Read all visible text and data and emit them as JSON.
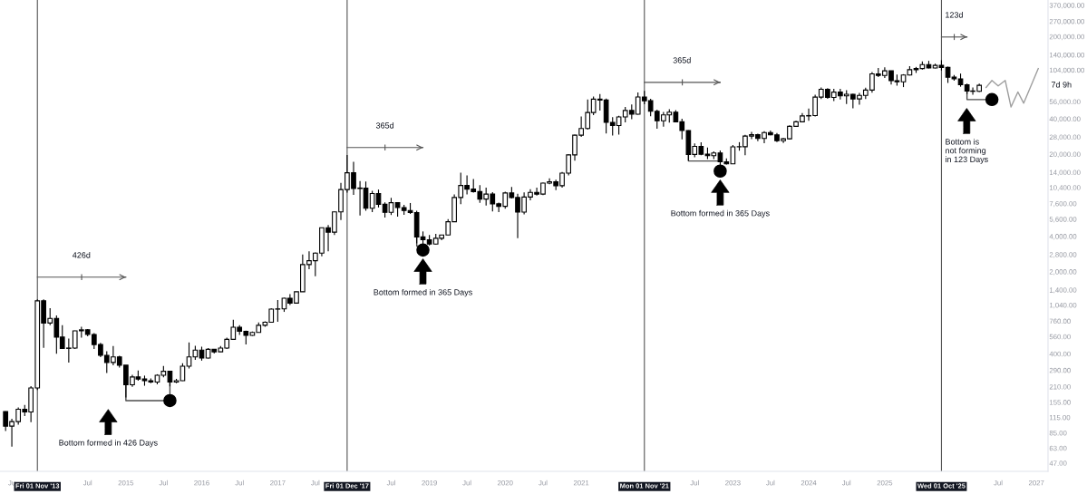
{
  "chart_data": {
    "type": "candlestick",
    "color": "#000000",
    "log": true,
    "grid": false,
    "x": [
      "2013-06",
      "2013-07",
      "2013-08",
      "2013-09",
      "2013-10",
      "2013-11",
      "2013-12",
      "2014-01",
      "2014-02",
      "2014-03",
      "2014-04",
      "2014-05",
      "2014-06",
      "2014-07",
      "2014-08",
      "2014-09",
      "2014-10",
      "2014-11",
      "2014-12",
      "2015-01",
      "2015-02",
      "2015-03",
      "2015-04",
      "2015-05",
      "2015-06",
      "2015-07",
      "2015-08",
      "2015-09",
      "2015-10",
      "2015-11",
      "2015-12",
      "2016-01",
      "2016-02",
      "2016-03",
      "2016-04",
      "2016-05",
      "2016-06",
      "2016-07",
      "2016-08",
      "2016-09",
      "2016-10",
      "2016-11",
      "2016-12",
      "2017-01",
      "2017-02",
      "2017-03",
      "2017-04",
      "2017-05",
      "2017-06",
      "2017-07",
      "2017-08",
      "2017-09",
      "2017-10",
      "2017-11",
      "2017-12",
      "2018-01",
      "2018-02",
      "2018-03",
      "2018-04",
      "2018-05",
      "2018-06",
      "2018-07",
      "2018-08",
      "2018-09",
      "2018-10",
      "2018-11",
      "2018-12",
      "2019-01",
      "2019-02",
      "2019-03",
      "2019-04",
      "2019-05",
      "2019-06",
      "2019-07",
      "2019-08",
      "2019-09",
      "2019-10",
      "2019-11",
      "2019-12",
      "2020-01",
      "2020-02",
      "2020-03",
      "2020-04",
      "2020-05",
      "2020-06",
      "2020-07",
      "2020-08",
      "2020-09",
      "2020-10",
      "2020-11",
      "2020-12",
      "2021-01",
      "2021-02",
      "2021-03",
      "2021-04",
      "2021-05",
      "2021-06",
      "2021-07",
      "2021-08",
      "2021-09",
      "2021-10",
      "2021-11",
      "2021-12",
      "2022-01",
      "2022-02",
      "2022-03",
      "2022-04",
      "2022-05",
      "2022-06",
      "2022-07",
      "2022-08",
      "2022-09",
      "2022-10",
      "2022-11",
      "2022-12",
      "2023-01",
      "2023-02",
      "2023-03",
      "2023-04",
      "2023-05",
      "2023-06",
      "2023-07",
      "2023-08",
      "2023-09",
      "2023-10",
      "2023-11",
      "2023-12",
      "2024-01",
      "2024-02",
      "2024-03",
      "2024-04",
      "2024-05",
      "2024-06",
      "2024-07",
      "2024-08",
      "2024-09",
      "2024-10",
      "2024-11",
      "2024-12",
      "2025-01",
      "2025-02",
      "2025-03",
      "2025-04",
      "2025-05",
      "2025-06",
      "2025-07",
      "2025-08",
      "2025-09",
      "2025-10",
      "2025-11",
      "2025-12",
      "2026-01",
      "2026-02",
      "2026-03",
      "2026-04"
    ],
    "ohlc": [
      [
        129,
        130,
        88,
        97
      ],
      [
        97,
        112,
        65,
        106
      ],
      [
        106,
        140,
        100,
        135
      ],
      [
        135,
        147,
        118,
        128
      ],
      [
        128,
        212,
        105,
        205
      ],
      [
        205,
        1163,
        197,
        1130
      ],
      [
        1130,
        1163,
        449,
        732
      ],
      [
        732,
        980,
        700,
        800
      ],
      [
        800,
        850,
        400,
        555
      ],
      [
        555,
        700,
        440,
        445
      ],
      [
        445,
        540,
        337,
        448
      ],
      [
        448,
        630,
        440,
        628
      ],
      [
        628,
        680,
        550,
        640
      ],
      [
        640,
        650,
        565,
        585
      ],
      [
        585,
        600,
        440,
        480
      ],
      [
        480,
        495,
        375,
        388
      ],
      [
        388,
        420,
        275,
        338
      ],
      [
        338,
        466,
        320,
        377
      ],
      [
        377,
        385,
        305,
        320
      ],
      [
        320,
        320,
        170,
        218
      ],
      [
        218,
        265,
        210,
        254
      ],
      [
        254,
        289,
        236,
        244
      ],
      [
        244,
        261,
        214,
        236
      ],
      [
        236,
        247,
        225,
        230
      ],
      [
        230,
        268,
        220,
        263
      ],
      [
        263,
        315,
        253,
        284
      ],
      [
        284,
        285,
        211,
        230
      ],
      [
        230,
        245,
        225,
        236
      ],
      [
        236,
        333,
        235,
        314
      ],
      [
        314,
        500,
        300,
        377
      ],
      [
        377,
        468,
        355,
        430
      ],
      [
        430,
        460,
        350,
        368
      ],
      [
        368,
        448,
        365,
        437
      ],
      [
        437,
        440,
        403,
        416
      ],
      [
        416,
        467,
        415,
        448
      ],
      [
        448,
        550,
        440,
        531
      ],
      [
        531,
        780,
        525,
        673
      ],
      [
        673,
        700,
        580,
        622
      ],
      [
        622,
        630,
        480,
        574
      ],
      [
        574,
        620,
        570,
        608
      ],
      [
        608,
        740,
        605,
        700
      ],
      [
        700,
        755,
        680,
        742
      ],
      [
        742,
        975,
        740,
        960
      ],
      [
        960,
        1150,
        750,
        965
      ],
      [
        965,
        1200,
        910,
        1190
      ],
      [
        1190,
        1290,
        1040,
        1080
      ],
      [
        1080,
        1350,
        1070,
        1350
      ],
      [
        1350,
        2800,
        1350,
        2300
      ],
      [
        2300,
        2980,
        2100,
        2480
      ],
      [
        2480,
        2920,
        1830,
        2875
      ],
      [
        2875,
        4750,
        2700,
        4735
      ],
      [
        4735,
        4980,
        2980,
        4340
      ],
      [
        4340,
        6470,
        4110,
        6450
      ],
      [
        6450,
        11400,
        5500,
        10000
      ],
      [
        10000,
        19700,
        9400,
        13880
      ],
      [
        13880,
        17200,
        9000,
        10200
      ],
      [
        10200,
        11800,
        6000,
        10300
      ],
      [
        10300,
        11700,
        6600,
        6930
      ],
      [
        6930,
        9770,
        6430,
        9240
      ],
      [
        9240,
        9990,
        7040,
        7490
      ],
      [
        7490,
        7780,
        5780,
        6390
      ],
      [
        6390,
        8500,
        6070,
        7730
      ],
      [
        7730,
        7760,
        5880,
        7030
      ],
      [
        7030,
        7400,
        6100,
        6630
      ],
      [
        6630,
        7680,
        6200,
        6370
      ],
      [
        6370,
        6590,
        3480,
        3950
      ],
      [
        3950,
        4400,
        3150,
        3740
      ],
      [
        3740,
        4100,
        3350,
        3440
      ],
      [
        3440,
        4200,
        3400,
        3850
      ],
      [
        3850,
        4100,
        3700,
        4100
      ],
      [
        4100,
        5600,
        4080,
        5320
      ],
      [
        5320,
        9100,
        5300,
        8560
      ],
      [
        8560,
        13900,
        7500,
        10820
      ],
      [
        10820,
        13200,
        9100,
        10080
      ],
      [
        10080,
        12300,
        9400,
        9600
      ],
      [
        9600,
        10900,
        7700,
        8300
      ],
      [
        8300,
        10400,
        7300,
        9150
      ],
      [
        9150,
        9500,
        6500,
        7550
      ],
      [
        7550,
        7750,
        6430,
        7190
      ],
      [
        7190,
        9580,
        6860,
        9350
      ],
      [
        9350,
        10500,
        8400,
        8550
      ],
      [
        8550,
        9200,
        3850,
        6420
      ],
      [
        6420,
        9460,
        6150,
        8630
      ],
      [
        8630,
        10080,
        8100,
        9450
      ],
      [
        9450,
        10400,
        8900,
        9140
      ],
      [
        9140,
        11450,
        8950,
        11350
      ],
      [
        11350,
        12470,
        11100,
        11650
      ],
      [
        11650,
        12100,
        9880,
        10780
      ],
      [
        10780,
        14100,
        10400,
        13800
      ],
      [
        13800,
        19900,
        13200,
        19700
      ],
      [
        19700,
        29300,
        17600,
        29000
      ],
      [
        29000,
        41900,
        28100,
        33100
      ],
      [
        33100,
        58300,
        32300,
        45200
      ],
      [
        45200,
        61800,
        43000,
        58800
      ],
      [
        58800,
        64900,
        47000,
        57700
      ],
      [
        57700,
        59500,
        30000,
        37300
      ],
      [
        37300,
        41300,
        28800,
        35000
      ],
      [
        35000,
        42400,
        29300,
        41500
      ],
      [
        41500,
        50500,
        37300,
        47100
      ],
      [
        47100,
        52900,
        39600,
        43800
      ],
      [
        43800,
        67000,
        43300,
        61300
      ],
      [
        61300,
        69000,
        53300,
        57000
      ],
      [
        57000,
        59100,
        42000,
        46300
      ],
      [
        46300,
        47900,
        32900,
        38500
      ],
      [
        38500,
        45800,
        34300,
        43200
      ],
      [
        43200,
        48200,
        37200,
        45500
      ],
      [
        45500,
        47400,
        37600,
        37700
      ],
      [
        37700,
        40000,
        26700,
        31800
      ],
      [
        31800,
        31900,
        17600,
        19900
      ],
      [
        19900,
        24700,
        18800,
        23300
      ],
      [
        23300,
        25200,
        19600,
        20000
      ],
      [
        20000,
        22800,
        18200,
        19400
      ],
      [
        19400,
        21100,
        18200,
        20500
      ],
      [
        20500,
        21500,
        15500,
        17200
      ],
      [
        17200,
        18400,
        16300,
        16550
      ],
      [
        16550,
        23900,
        16500,
        23100
      ],
      [
        23100,
        25300,
        21400,
        23150
      ],
      [
        23150,
        29200,
        19600,
        28500
      ],
      [
        28500,
        31000,
        26900,
        29300
      ],
      [
        29300,
        29800,
        25800,
        27200
      ],
      [
        27200,
        31400,
        24800,
        30500
      ],
      [
        30500,
        31800,
        28900,
        29200
      ],
      [
        29200,
        30200,
        25300,
        26000
      ],
      [
        26000,
        27500,
        24900,
        27000
      ],
      [
        27000,
        35200,
        26600,
        34500
      ],
      [
        34500,
        38400,
        34100,
        37700
      ],
      [
        37700,
        44700,
        37600,
        42300
      ],
      [
        42300,
        48900,
        38500,
        42600
      ],
      [
        42600,
        64000,
        41900,
        61200
      ],
      [
        61200,
        73800,
        59000,
        71300
      ],
      [
        71300,
        72800,
        59200,
        60700
      ],
      [
        60700,
        72000,
        56500,
        67500
      ],
      [
        67500,
        72000,
        58400,
        62700
      ],
      [
        62700,
        70000,
        53500,
        64600
      ],
      [
        64600,
        65100,
        49000,
        59000
      ],
      [
        59000,
        66500,
        52600,
        63300
      ],
      [
        63300,
        73600,
        58900,
        70200
      ],
      [
        70200,
        99800,
        66800,
        96400
      ],
      [
        96400,
        108300,
        90500,
        93400
      ],
      [
        93400,
        109600,
        89200,
        102400
      ],
      [
        102400,
        102800,
        78300,
        84300
      ],
      [
        84300,
        95000,
        76600,
        82500
      ],
      [
        82500,
        95800,
        74400,
        94200
      ],
      [
        94200,
        111900,
        93400,
        104600
      ],
      [
        104600,
        110500,
        98200,
        107100
      ],
      [
        107100,
        123000,
        105100,
        115700
      ],
      [
        115700,
        124400,
        107300,
        108200
      ],
      [
        108200,
        117900,
        107300,
        114000
      ],
      [
        114000,
        126000,
        103000,
        109500
      ],
      [
        109500,
        111000,
        80600,
        90400
      ],
      [
        90400,
        94500,
        84500,
        87500
      ],
      [
        87500,
        97000,
        75000,
        78000
      ],
      [
        78000,
        79500,
        65000,
        69000
      ],
      [
        69000,
        74000,
        64000,
        68500
      ],
      [
        68500,
        79500,
        67500,
        77000
      ]
    ],
    "series": [
      {
        "type": "line",
        "color": "#9e9e9e",
        "x": [
          "2026-05-04",
          "2026-06",
          "2026-07",
          "2026-08-04",
          "2026-09",
          "2026-10-04",
          "2026-11",
          "2027-01-10"
        ],
        "values": [
          73900,
          84800,
          76100,
          84800,
          50400,
          67600,
          54300,
          106800
        ]
      },
      {
        "type": "line",
        "color": "#4d4d4d",
        "x": [
          "2015-01",
          "2015-01",
          "2015-08",
          "2015-08",
          null,
          "2018-11",
          "2018-11",
          "2018-12",
          null,
          "2022-06",
          "2022-06",
          "2022-11",
          null,
          "2026-02",
          "2026-02",
          "2026-06"
        ],
        "values": [
          218,
          160,
          160,
          230,
          null,
          3950,
          3300,
          3300,
          null,
          19900,
          17500,
          17500,
          null,
          69000,
          58300,
          58300
        ]
      },
      {
        "type": "scatter",
        "color": "#000000",
        "marker": "circle",
        "x": [
          "2015-08",
          "2018-12",
          "2022-11",
          "2026-06"
        ],
        "values": [
          160,
          3055,
          14350,
          58300
        ]
      },
      {
        "type": "line",
        "color": "#555555",
        "x": [
          "2013-11-01",
          "2015-01-01"
        ],
        "values": [
          1795,
          1795
        ]
      },
      {
        "type": "line",
        "color": "#555555",
        "x": [
          "2017-12-01",
          "2018-12-01"
        ],
        "values": [
          22750,
          22750
        ]
      },
      {
        "type": "line",
        "color": "#555555",
        "x": [
          "2021-11-01",
          "2022-11-01"
        ],
        "values": [
          81700,
          81700
        ]
      },
      {
        "type": "line",
        "color": "#555555",
        "x": [
          "2025-10-01",
          "2026-02-01"
        ],
        "values": [
          198600,
          198600
        ]
      }
    ],
    "xlim": [
      "2013-05-05",
      "2027-02-26"
    ],
    "xticks": [
      {
        "value": "2013-07",
        "label": "Ju"
      },
      {
        "value": "2014-07",
        "label": "Jul"
      },
      {
        "value": "2015-01",
        "label": "2015"
      },
      {
        "value": "2015-07",
        "label": "Jul"
      },
      {
        "value": "2016-01",
        "label": "2016"
      },
      {
        "value": "2016-07",
        "label": "Jul"
      },
      {
        "value": "2017-01",
        "label": "2017"
      },
      {
        "value": "2017-07",
        "label": "Jul"
      },
      {
        "value": "2018-07",
        "label": "Jul"
      },
      {
        "value": "2019-01",
        "label": "2019"
      },
      {
        "value": "2019-07",
        "label": "Jul"
      },
      {
        "value": "2020-01",
        "label": "2020"
      },
      {
        "value": "2020-07",
        "label": "Jul"
      },
      {
        "value": "2021-01",
        "label": "2021"
      },
      {
        "value": "2022-07",
        "label": "Jul"
      },
      {
        "value": "2023-01",
        "label": "2023"
      },
      {
        "value": "2023-07",
        "label": "Jul"
      },
      {
        "value": "2024-01",
        "label": "2024"
      },
      {
        "value": "2024-07",
        "label": "Jul"
      },
      {
        "value": "2025-01",
        "label": "2025"
      },
      {
        "value": "2026-07",
        "label": "Jul"
      },
      {
        "value": "2027-01",
        "label": "2027"
      }
    ],
    "ylim": [
      40,
      410000
    ],
    "yticks": [
      {
        "value": 47,
        "label": "47.00"
      },
      {
        "value": 63,
        "label": "63.00"
      },
      {
        "value": 85,
        "label": "85.00"
      },
      {
        "value": 115,
        "label": "115.00"
      },
      {
        "value": 155,
        "label": "155.00"
      },
      {
        "value": 210,
        "label": "210.00"
      },
      {
        "value": 290,
        "label": "290.00"
      },
      {
        "value": 400,
        "label": "400.00"
      },
      {
        "value": 560,
        "label": "560.00"
      },
      {
        "value": 760,
        "label": "760.00"
      },
      {
        "value": 1040,
        "label": "1,040.00"
      },
      {
        "value": 1400,
        "label": "1,400.00"
      },
      {
        "value": 2000,
        "label": "2,000.00"
      },
      {
        "value": 2800,
        "label": "2,800.00"
      },
      {
        "value": 4000,
        "label": "4,000.00"
      },
      {
        "value": 5600,
        "label": "5,600.00"
      },
      {
        "value": 7600,
        "label": "7,600.00"
      },
      {
        "value": 10400,
        "label": "10,400.00"
      },
      {
        "value": 14000,
        "label": "14,000.00"
      },
      {
        "value": 20000,
        "label": "20,000.00"
      },
      {
        "value": 28000,
        "label": "28,000.00"
      },
      {
        "value": 40000,
        "label": "40,000.00"
      },
      {
        "value": 56000,
        "label": "56,000.00"
      },
      {
        "value": 104000,
        "label": "104,000.00"
      },
      {
        "value": 140000,
        "label": "140,000.00"
      },
      {
        "value": 200000,
        "label": "200,000.00"
      },
      {
        "value": 270000,
        "label": "270,000.00"
      },
      {
        "value": 370000,
        "label": "370,000.00"
      }
    ],
    "ref_lines": [
      {
        "axis": "x",
        "value": "2013-11-01",
        "label": "Fri 01 Nov '13",
        "color": "#555555"
      },
      {
        "axis": "x",
        "value": "2017-12-01",
        "label": "Fri 01 Dec '17",
        "color": "#555555"
      },
      {
        "axis": "x",
        "value": "2021-11-01",
        "label": "Mon 01 Nov '21",
        "color": "#555555"
      },
      {
        "axis": "x",
        "value": "2025-10-01",
        "label": "Wed 01 Oct '25",
        "color": "#555555"
      }
    ],
    "annotations": [
      {
        "text": "426d",
        "x": "2014-06-01",
        "y": 1795
      },
      {
        "text": "365d",
        "x": "2018-06-01",
        "y": 22750
      },
      {
        "text": "365d",
        "x": "2022-05-01",
        "y": 81700
      },
      {
        "text": "123d",
        "x": "2025-12-01",
        "y": 198600
      },
      "Bottom formed in 426 Days",
      "Bottom formed in 365 Days",
      "Bottom formed in 365 Days",
      "Bottom is\nnot forming\nin 123 Days",
      "7d 9h"
    ]
  }
}
